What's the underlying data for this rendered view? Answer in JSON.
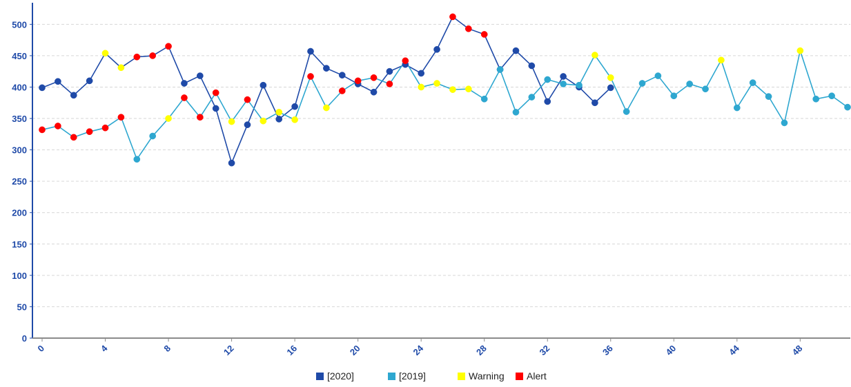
{
  "chart_data": {
    "type": "line",
    "title": "",
    "xlabel": "",
    "ylabel": "",
    "xlim": [
      0,
      51
    ],
    "ylim": [
      0,
      530
    ],
    "x_ticks": [
      0,
      4,
      8,
      12,
      16,
      20,
      24,
      28,
      32,
      36,
      40,
      44,
      48
    ],
    "y_ticks": [
      0,
      50,
      100,
      150,
      200,
      250,
      300,
      350,
      400,
      450,
      500
    ],
    "grid": true,
    "legend_position": "bottom-center",
    "series": [
      {
        "name": "[2020]",
        "color": "#1f4aa8",
        "x": [
          0,
          1,
          2,
          3,
          4,
          5,
          6,
          7,
          8,
          9,
          10,
          11,
          12,
          13,
          14,
          15,
          16,
          17,
          18,
          19,
          20,
          21,
          22,
          23,
          24,
          25,
          26,
          27,
          28,
          29,
          30,
          31,
          32,
          33,
          34,
          35,
          36
        ],
        "values": [
          399,
          409,
          387,
          410,
          454,
          431,
          448,
          450,
          465,
          406,
          418,
          366,
          279,
          340,
          403,
          349,
          369,
          457,
          430,
          419,
          405,
          392,
          425,
          436,
          422,
          460,
          512,
          493,
          484,
          428,
          458,
          434,
          377,
          417,
          400,
          375,
          399
        ],
        "point_status": [
          "normal",
          "normal",
          "normal",
          "normal",
          "warning",
          "warning",
          "alert",
          "alert",
          "alert",
          "normal",
          "normal",
          "normal",
          "normal",
          "normal",
          "normal",
          "normal",
          "normal",
          "normal",
          "normal",
          "normal",
          "normal",
          "normal",
          "normal",
          "normal",
          "normal",
          "normal",
          "alert",
          "alert",
          "alert",
          "normal",
          "normal",
          "normal",
          "normal",
          "normal",
          "normal",
          "normal",
          "normal"
        ]
      },
      {
        "name": "[2019]",
        "color": "#2ea7d0",
        "x": [
          0,
          1,
          2,
          3,
          4,
          5,
          6,
          7,
          8,
          9,
          10,
          11,
          12,
          13,
          14,
          15,
          16,
          17,
          18,
          19,
          20,
          21,
          22,
          23,
          24,
          25,
          26,
          27,
          28,
          29,
          30,
          31,
          32,
          33,
          34,
          35,
          36,
          37,
          38,
          39,
          40,
          41,
          42,
          43,
          44,
          45,
          46,
          47,
          48,
          49,
          50,
          51
        ],
        "values": [
          332,
          338,
          320,
          329,
          335,
          352,
          285,
          322,
          350,
          383,
          352,
          391,
          345,
          380,
          346,
          360,
          348,
          417,
          367,
          394,
          410,
          415,
          405,
          442,
          400,
          406,
          396,
          397,
          381,
          428,
          360,
          384,
          412,
          405,
          403,
          451,
          415,
          361,
          406,
          418,
          386,
          405,
          397,
          443,
          367,
          407,
          385,
          343,
          458,
          381,
          386,
          368
        ],
        "point_status": [
          "alert",
          "alert",
          "alert",
          "alert",
          "alert",
          "alert",
          "normal",
          "normal",
          "warning",
          "alert",
          "alert",
          "alert",
          "warning",
          "alert",
          "warning",
          "warning",
          "warning",
          "alert",
          "warning",
          "alert",
          "alert",
          "alert",
          "alert",
          "alert",
          "warning",
          "warning",
          "warning",
          "warning",
          "normal",
          "normal",
          "normal",
          "normal",
          "normal",
          "normal",
          "normal",
          "warning",
          "warning",
          "normal",
          "normal",
          "normal",
          "normal",
          "normal",
          "normal",
          "warning",
          "normal",
          "normal",
          "normal",
          "normal",
          "warning",
          "normal",
          "normal",
          "normal"
        ]
      }
    ],
    "status_colors": {
      "warning": "#ffff00",
      "alert": "#ff0000"
    },
    "legend": [
      {
        "label": "[2020]",
        "color": "#1f4aa8"
      },
      {
        "label": "[2019]",
        "color": "#2ea7d0"
      },
      {
        "label": "Warning",
        "color": "#ffff00"
      },
      {
        "label": "Alert",
        "color": "#ff0000"
      }
    ]
  }
}
